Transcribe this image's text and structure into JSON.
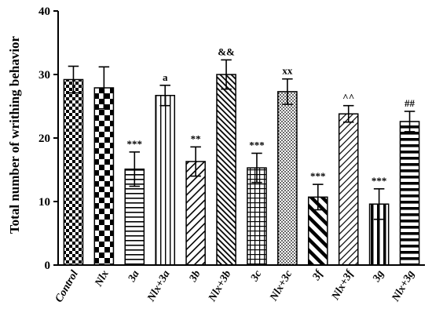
{
  "chart_data": {
    "type": "bar",
    "title": "",
    "xlabel": "",
    "ylabel": "Total number of writhing behavior",
    "ylim": [
      0,
      40
    ],
    "yticks": [
      0,
      10,
      20,
      30,
      40
    ],
    "grid": false,
    "legend": "none",
    "categories": [
      "Control",
      "Nlx",
      "3a",
      "Nlx+3a",
      "3b",
      "Nlx+3b",
      "3c",
      "Nlx+3c",
      "3f",
      "Nlx+3f",
      "3g",
      "Nlx+3g"
    ],
    "values": [
      29.2,
      27.9,
      15.1,
      26.7,
      16.3,
      30.0,
      15.3,
      27.3,
      10.7,
      23.8,
      9.6,
      22.6
    ],
    "errors": [
      2.1,
      3.3,
      2.7,
      1.6,
      2.3,
      2.3,
      2.3,
      2.0,
      2.0,
      1.3,
      2.4,
      1.6
    ],
    "annotations": [
      "",
      "",
      "***",
      "a",
      "**",
      "&&",
      "***",
      "xx",
      "***",
      "^^",
      "***",
      "##"
    ],
    "patterns": [
      "checker",
      "checker-large",
      "horizontal",
      "vertical",
      "diagonal",
      "diagonal-dense",
      "grid",
      "dots",
      "diagonal-thick",
      "diagonal-fine",
      "vertical-thick",
      "horizontal-thick"
    ],
    "colors": {
      "bar_fill": "#ffffff",
      "bar_stroke": "#000000",
      "pattern": "#000000"
    }
  }
}
